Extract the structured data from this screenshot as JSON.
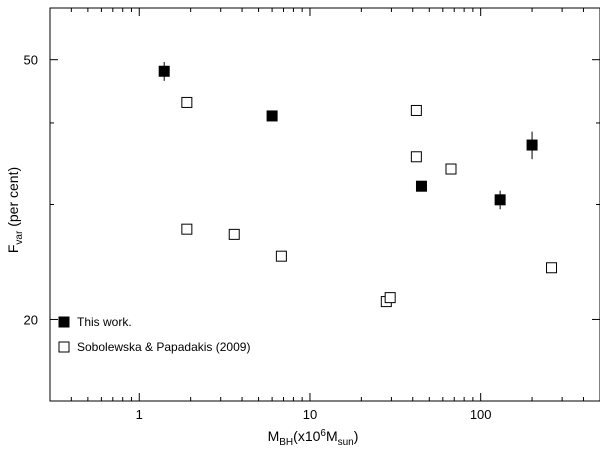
{
  "chart_data": {
    "type": "scatter",
    "xlabel": "M",
    "xlabel_sub": "BH",
    "xlabel_rest_1": "(x10",
    "xlabel_sup": "6",
    "xlabel_rest_2": "M",
    "xlabel_sub2": "sun",
    "xlabel_rest_3": ")",
    "ylabel": "F",
    "ylabel_sub": "var",
    "ylabel_rest": " (per cent)",
    "xscale": "log",
    "yscale": "log",
    "xlim": [
      0.3,
      500
    ],
    "ylim": [
      15,
      60
    ],
    "xticks": [
      {
        "value": 1,
        "label": "1"
      },
      {
        "value": 10,
        "label": "10"
      },
      {
        "value": 100,
        "label": "100"
      }
    ],
    "yticks": [
      {
        "value": 20,
        "label": "20"
      },
      {
        "value": 50,
        "label": "50"
      }
    ],
    "grid": false,
    "legend_position": "bottom-left",
    "series": [
      {
        "name": "This work.",
        "marker": "filled-square",
        "points": [
          {
            "x": 1.4,
            "y": 48.0,
            "yerr": 1.6
          },
          {
            "x": 6.0,
            "y": 41.0,
            "yerr": 0.6
          },
          {
            "x": 45,
            "y": 32.0,
            "yerr": 0.6
          },
          {
            "x": 130,
            "y": 30.5,
            "yerr": 1.0
          },
          {
            "x": 200,
            "y": 37.0,
            "yerr": 1.8
          }
        ]
      },
      {
        "name": "Sobolewska & Papadakis (2009)",
        "marker": "open-square",
        "points": [
          {
            "x": 1.9,
            "y": 43.0
          },
          {
            "x": 1.9,
            "y": 27.5
          },
          {
            "x": 3.6,
            "y": 27.0
          },
          {
            "x": 6.8,
            "y": 25.0
          },
          {
            "x": 28,
            "y": 21.3
          },
          {
            "x": 29.5,
            "y": 21.6
          },
          {
            "x": 42,
            "y": 41.8
          },
          {
            "x": 42,
            "y": 35.5
          },
          {
            "x": 67,
            "y": 34.0
          },
          {
            "x": 260,
            "y": 24.0
          }
        ]
      }
    ]
  }
}
